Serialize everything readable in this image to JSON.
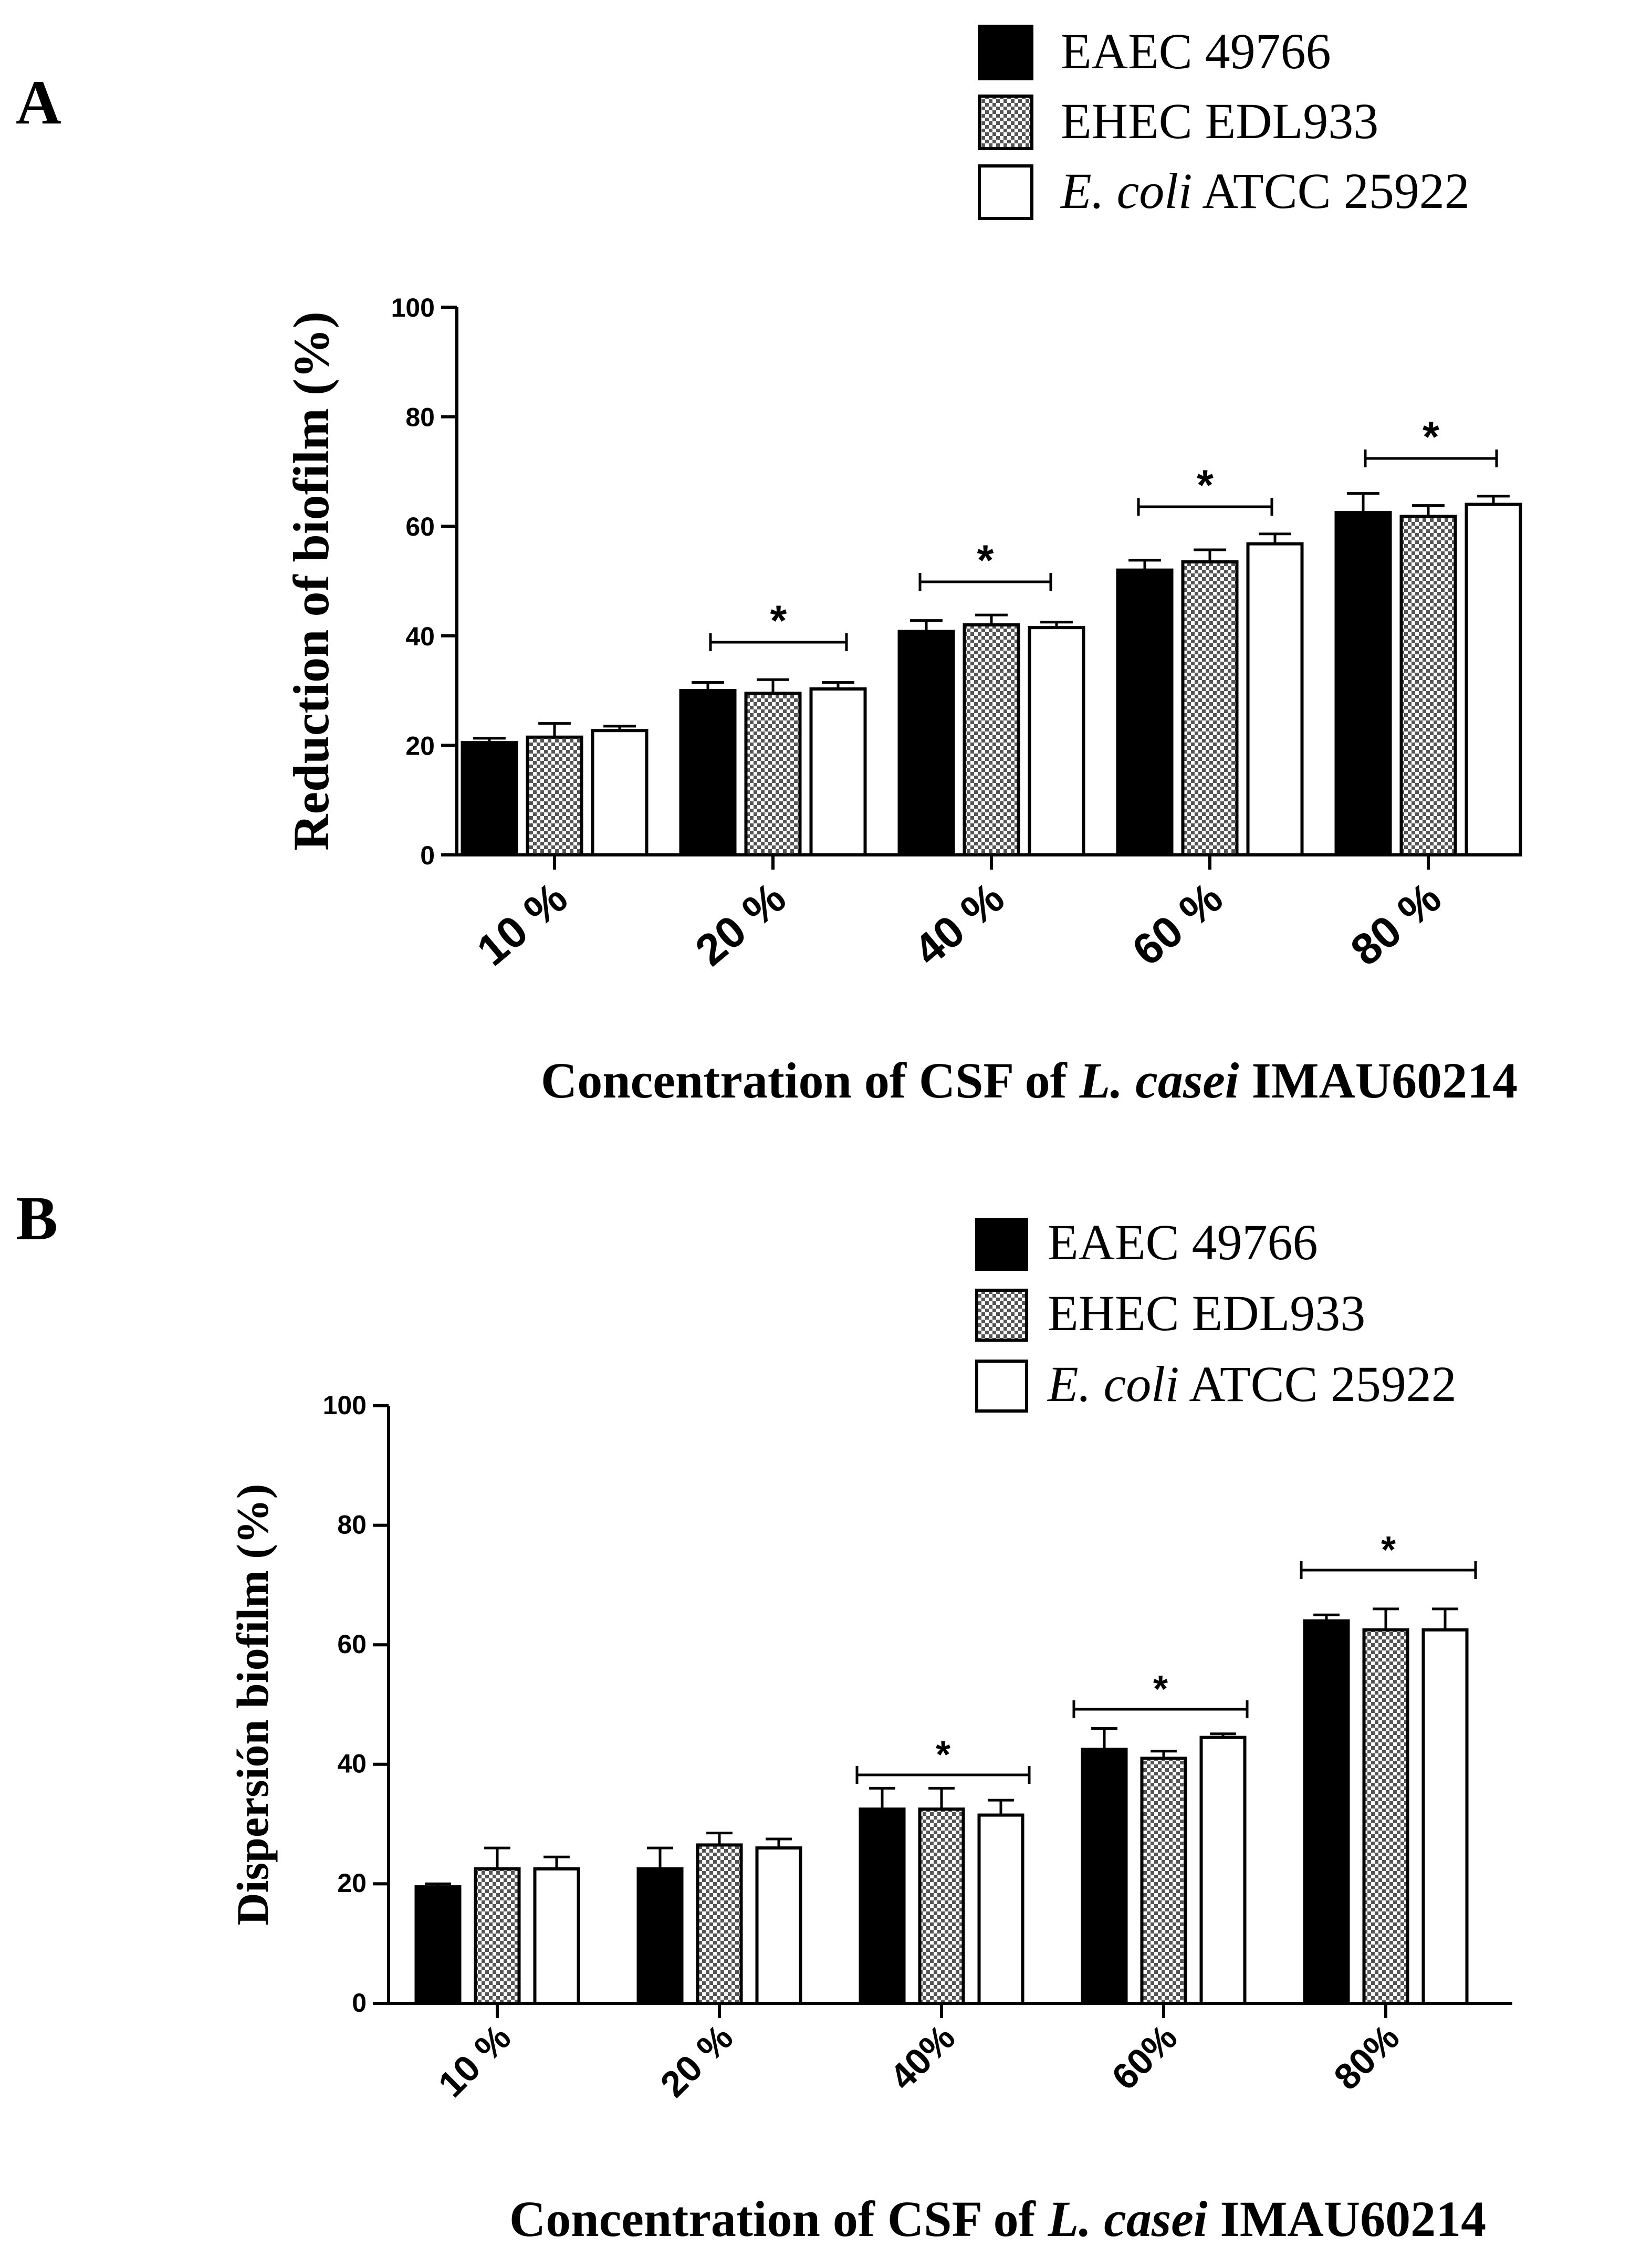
{
  "colors": {
    "EAEC 49766": "#000000",
    "EHEC EDL933": "pattern",
    "E. coli ATCC 25922": "#ffffff",
    "axis": "#000000"
  },
  "chart_data": [
    {
      "panel": "A",
      "type": "bar",
      "ylabel": "Reduction of  biofilm  (%)",
      "xlabel_parts": [
        "Concentration of CSF of ",
        "L. casei",
        " IMAU60214"
      ],
      "ylim": [
        0,
        100
      ],
      "yticks": [
        "0",
        "20",
        "40",
        "60",
        "80",
        "100"
      ],
      "categories": [
        "10 %",
        "20 %",
        "40 %",
        "60 %",
        "80 %"
      ],
      "legend": [
        {
          "name_parts": [
            "EAEC 49766"
          ],
          "italic_first": false,
          "fill": "black"
        },
        {
          "name_parts": [
            "EHEC EDL933"
          ],
          "italic_first": false,
          "fill": "pattern"
        },
        {
          "name_parts": [
            "E. coli",
            " ATCC 25922"
          ],
          "italic_first": true,
          "fill": "white"
        }
      ],
      "series": [
        {
          "name": "EAEC 49766",
          "values": [
            20.5,
            30.0,
            40.8,
            52.0,
            62.5
          ],
          "errors": [
            0.8,
            1.5,
            2.0,
            1.8,
            3.5
          ]
        },
        {
          "name": "EHEC EDL933",
          "values": [
            21.5,
            29.5,
            42.0,
            53.5,
            61.8
          ],
          "errors": [
            2.5,
            2.5,
            1.8,
            2.2,
            2.0
          ]
        },
        {
          "name": "E. coli ATCC 25922",
          "values": [
            22.7,
            30.3,
            41.5,
            56.8,
            64.0
          ],
          "errors": [
            0.8,
            1.2,
            1.0,
            1.8,
            1.5
          ]
        }
      ],
      "significance": [
        {
          "category": "20 %",
          "label": "*"
        },
        {
          "category": "40 %",
          "label": "*"
        },
        {
          "category": "60 %",
          "label": "*"
        },
        {
          "category": "80 %",
          "label": "*"
        }
      ]
    },
    {
      "panel": "B",
      "type": "bar",
      "ylabel": "Dispersión biofilm (%)",
      "xlabel_parts": [
        "Concentration of CSF of ",
        "L. casei",
        " IMAU60214"
      ],
      "ylim": [
        0,
        100
      ],
      "yticks": [
        "0",
        "20",
        "40",
        "60",
        "80",
        "100"
      ],
      "categories": [
        "10 %",
        "20 %",
        "40%",
        "60%",
        "80%"
      ],
      "legend": [
        {
          "name_parts": [
            "EAEC 49766"
          ],
          "italic_first": false,
          "fill": "black"
        },
        {
          "name_parts": [
            "EHEC EDL933"
          ],
          "italic_first": false,
          "fill": "pattern"
        },
        {
          "name_parts": [
            "E. coli",
            " ATCC 25922"
          ],
          "italic_first": true,
          "fill": "white"
        }
      ],
      "series": [
        {
          "name": "EAEC 49766",
          "values": [
            19.5,
            22.5,
            32.5,
            42.5,
            64.0
          ],
          "errors": [
            0.5,
            3.5,
            3.5,
            3.5,
            1.0
          ]
        },
        {
          "name": "EHEC EDL933",
          "values": [
            22.5,
            26.5,
            32.5,
            41.0,
            62.5
          ],
          "errors": [
            3.5,
            2.0,
            3.5,
            1.2,
            3.5
          ]
        },
        {
          "name": "E. coli ATCC 25922",
          "values": [
            22.5,
            26.0,
            31.5,
            44.5,
            62.5
          ],
          "errors": [
            2.0,
            1.5,
            2.5,
            0.6,
            3.5
          ]
        }
      ],
      "significance": [
        {
          "category": "40%",
          "label": "*"
        },
        {
          "category": "60%",
          "label": "*"
        },
        {
          "category": "80%",
          "label": "*"
        }
      ]
    }
  ]
}
